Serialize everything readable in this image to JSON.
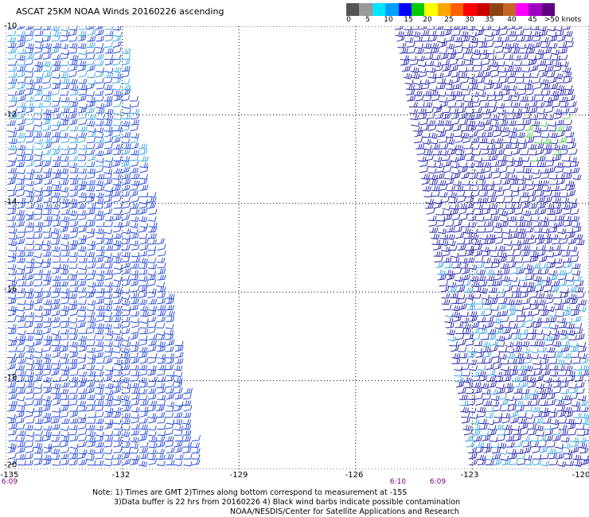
{
  "title": "ASCAT 25KM NOAA Winds 20160226 ascending",
  "scale": {
    "colors": [
      "#555555",
      "#999999",
      "#00e5ff",
      "#00a0ff",
      "#0000ff",
      "#00cc00",
      "#ffff00",
      "#ffa500",
      "#ff6000",
      "#ff0000",
      "#cc0000",
      "#8b4513",
      "#c86428",
      "#ff00ff",
      "#a000c0",
      "#600080"
    ],
    "labels": [
      "0",
      "5",
      "10",
      "15",
      "20",
      "25",
      "30",
      "35",
      "40",
      "45",
      ">50 knots"
    ]
  },
  "axes": {
    "lat_labels": [
      "-10",
      "-12",
      "-14",
      "-16",
      "-18",
      "-20"
    ],
    "lon_labels": [
      "-135",
      "-132",
      "-129",
      "-126",
      "-123",
      "-120"
    ],
    "time_labels": [
      "6:09",
      "6:10",
      "6:09"
    ]
  },
  "notes": {
    "line1": "Note: 1) Times are GMT 2)Times along bottom correspond to measurement at -15S",
    "line2": "3)Data buffer is 22 hrs from 20160226 4) Black wind barbs indicate possible contamination",
    "line3": "NOAA/NESDIS/Center for Satellite Applications and Research"
  },
  "map": {
    "lat_range": [
      -20,
      -10
    ],
    "lon_range": [
      -135,
      -120
    ],
    "grid": true,
    "swaths": [
      {
        "name": "west",
        "barb_color": "#1a3fd6",
        "alt_color": "#28a0e0"
      },
      {
        "name": "east",
        "barb_color": "#1a1aa8",
        "alt_color": "#28a0e0",
        "highlight_color": "#33cc33"
      }
    ]
  }
}
